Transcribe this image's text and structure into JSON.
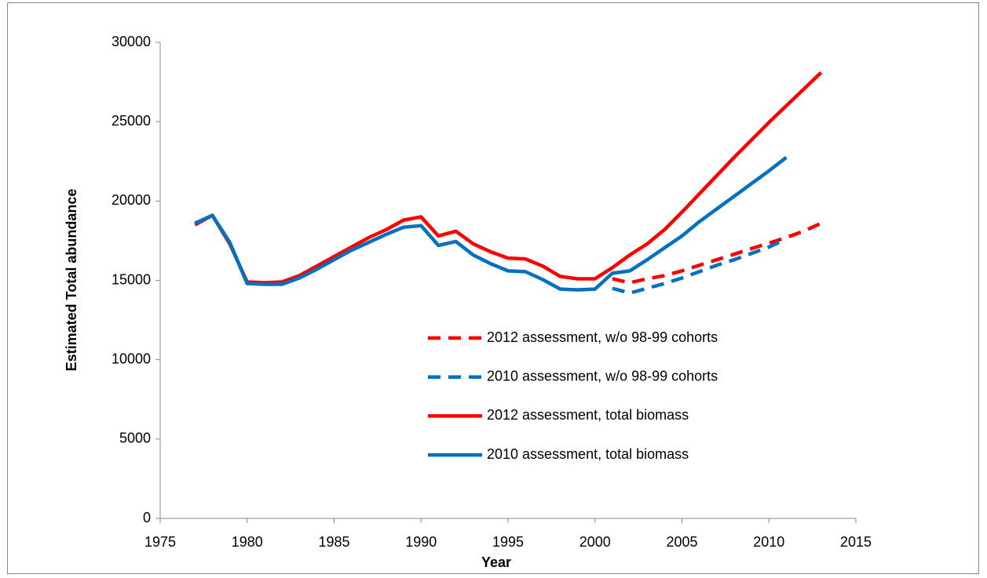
{
  "chart_data": {
    "type": "line",
    "xlabel": "Year",
    "ylabel": "Estimated Total abundance",
    "x": [
      1977,
      1978,
      1979,
      1980,
      1981,
      1982,
      1983,
      1984,
      1985,
      1986,
      1987,
      1988,
      1989,
      1990,
      1991,
      1992,
      1993,
      1994,
      1995,
      1996,
      1997,
      1998,
      1999,
      2000,
      2001,
      2002,
      2003,
      2004,
      2005,
      2006,
      2007,
      2008,
      2009,
      2010,
      2011,
      2012,
      2013
    ],
    "series": [
      {
        "name": "2012 assessment, w/o 98-99 cohorts",
        "color": "#ff0000",
        "dash": true,
        "values": [
          null,
          null,
          null,
          null,
          null,
          null,
          null,
          null,
          null,
          null,
          null,
          null,
          null,
          null,
          null,
          null,
          null,
          null,
          null,
          null,
          null,
          null,
          null,
          null,
          15100,
          14850,
          15100,
          15300,
          15600,
          15950,
          16300,
          16650,
          17000,
          17350,
          17700,
          18100,
          18600
        ]
      },
      {
        "name": "2010 assessment, w/o 98-99 cohorts",
        "color": "#0070c0",
        "dash": true,
        "values": [
          null,
          null,
          null,
          null,
          null,
          null,
          null,
          null,
          null,
          null,
          null,
          null,
          null,
          null,
          null,
          null,
          null,
          null,
          null,
          null,
          null,
          null,
          null,
          null,
          14500,
          14200,
          14500,
          14800,
          15150,
          15550,
          15950,
          16300,
          16700,
          17100,
          17600,
          null,
          null
        ]
      },
      {
        "name": "2012 assessment, total biomass",
        "color": "#ff0000",
        "dash": false,
        "values": [
          18500,
          19100,
          17300,
          14900,
          14850,
          14900,
          15300,
          15900,
          16500,
          17100,
          17700,
          18200,
          18800,
          19000,
          17800,
          18100,
          17300,
          16800,
          16400,
          16350,
          15900,
          15250,
          15100,
          15100,
          15800,
          16600,
          17300,
          18200,
          19300,
          20450,
          21600,
          22750,
          23850,
          24950,
          26000,
          27050,
          28100
        ]
      },
      {
        "name": "2010 assessment, total biomass",
        "color": "#0070c0",
        "dash": false,
        "values": [
          18600,
          19100,
          17400,
          14800,
          14750,
          14750,
          15150,
          15700,
          16300,
          16900,
          17400,
          17900,
          18350,
          18450,
          17200,
          17450,
          16600,
          16050,
          15600,
          15550,
          15050,
          14450,
          14400,
          14450,
          15450,
          15600,
          16300,
          17050,
          17800,
          18700,
          19500,
          20300,
          21100,
          21900,
          22750,
          null,
          null
        ]
      }
    ],
    "xlim": [
      1975,
      2015
    ],
    "xticks": [
      1975,
      1980,
      1985,
      1990,
      1995,
      2000,
      2005,
      2010,
      2015
    ],
    "ylim": [
      0,
      30000
    ],
    "yticks": [
      0,
      5000,
      10000,
      15000,
      20000,
      25000,
      30000
    ],
    "grid": false,
    "legend": "inside"
  }
}
